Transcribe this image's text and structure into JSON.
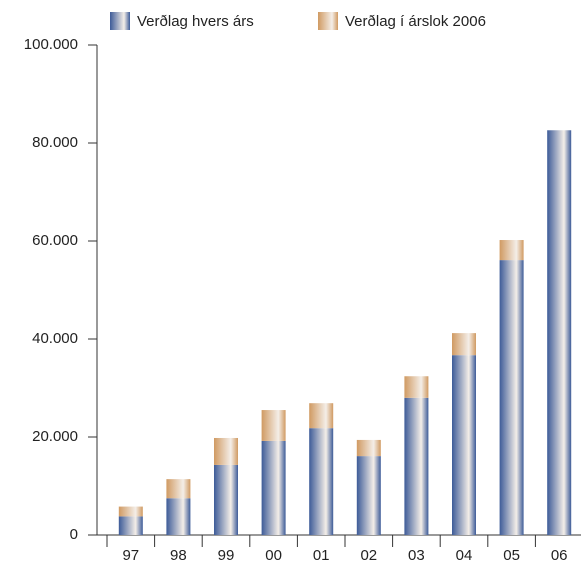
{
  "chart_data": {
    "type": "stacked_bar",
    "categories": [
      "97",
      "98",
      "99",
      "00",
      "01",
      "02",
      "03",
      "04",
      "05",
      "06"
    ],
    "series": [
      {
        "name": "Verðlag hvers árs",
        "color": "#3d5b98",
        "values": [
          3800,
          7500,
          14300,
          19200,
          21800,
          16100,
          28000,
          36700,
          56100,
          82600
        ]
      },
      {
        "name": "Verðlag í árslok 2006",
        "color": "#d09a62",
        "values": [
          2000,
          3900,
          5500,
          6300,
          5100,
          3300,
          4400,
          4500,
          4100,
          0
        ]
      }
    ],
    "ylim": [
      0,
      100000
    ],
    "yticks": [
      0,
      {
        "value": 20000,
        "label": "20.000"
      },
      {
        "value": 40000,
        "label": "40.000"
      },
      {
        "value": 60000,
        "label": "60.000"
      },
      {
        "value": 80000,
        "label": "80.000"
      },
      {
        "value": 100000,
        "label": "100.000"
      }
    ],
    "grid": false
  }
}
